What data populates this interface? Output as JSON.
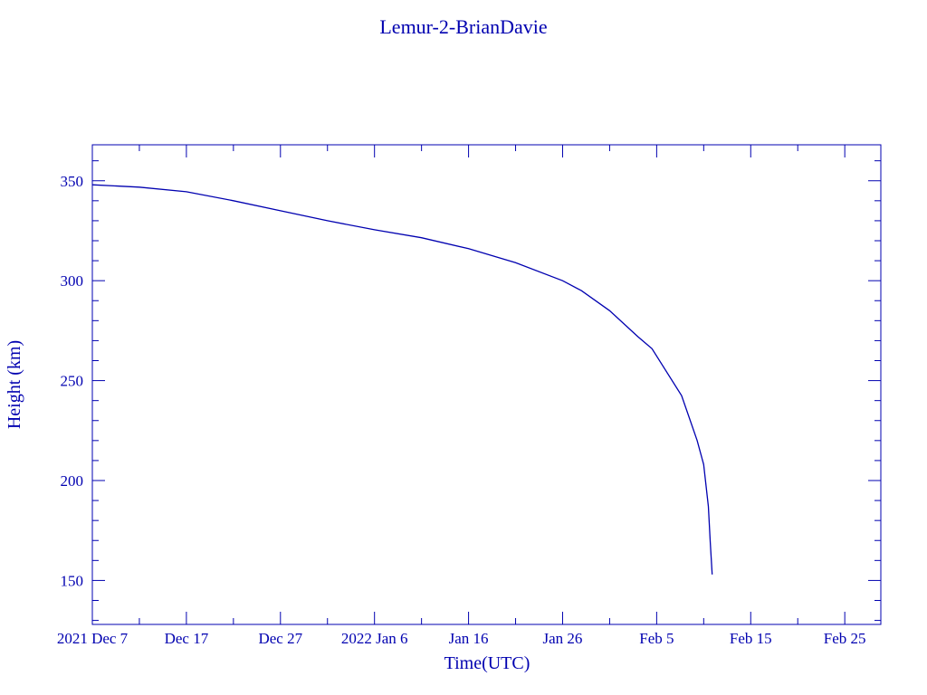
{
  "chart_data": {
    "type": "line",
    "title": "Lemur-2-BrianDavie",
    "xlabel": "Time(UTC)",
    "ylabel": "Height (km)",
    "xlim": [
      "2021-12-07T00:00",
      "2022-02-28T20:00"
    ],
    "ylim": [
      128,
      368
    ],
    "grid": false,
    "color": "#0000b0",
    "x_ticks": [
      {
        "date": "2021-12-07",
        "label": "2021 Dec  7"
      },
      {
        "date": "2021-12-17",
        "label": "Dec 17"
      },
      {
        "date": "2021-12-27",
        "label": "Dec 27"
      },
      {
        "date": "2022-01-06",
        "label": "2022 Jan  6"
      },
      {
        "date": "2022-01-16",
        "label": "Jan 16"
      },
      {
        "date": "2022-01-26",
        "label": "Jan 26"
      },
      {
        "date": "2022-02-05",
        "label": "Feb  5"
      },
      {
        "date": "2022-02-15",
        "label": "Feb 15"
      },
      {
        "date": "2022-02-25",
        "label": "Feb 25"
      }
    ],
    "y_ticks": [
      150,
      200,
      250,
      300,
      350
    ],
    "series": [
      {
        "x": [
          "2021-12-07T00:00",
          "2021-12-12T00:00",
          "2021-12-17T00:00",
          "2021-12-22T00:00",
          "2021-12-27T00:00",
          "2022-01-01T00:00",
          "2022-01-06T00:00",
          "2022-01-11T00:00",
          "2022-01-16T00:00",
          "2022-01-21T00:00",
          "2022-01-26T00:00",
          "2022-01-28T00:00",
          "2022-01-31T00:00",
          "2022-02-03T00:00",
          "2022-02-04T12:00",
          "2022-02-07T15:36",
          "2022-02-09T07:12",
          "2022-02-10T00:00",
          "2022-02-10T12:00",
          "2022-02-10T16:48",
          "2022-02-10T21:36"
        ],
        "y": [
          348,
          346.8,
          344.5,
          340,
          335,
          330,
          325.5,
          321.5,
          316,
          309,
          300,
          295,
          285,
          272,
          266,
          242.5,
          220,
          208,
          187,
          169,
          153
        ]
      }
    ]
  }
}
